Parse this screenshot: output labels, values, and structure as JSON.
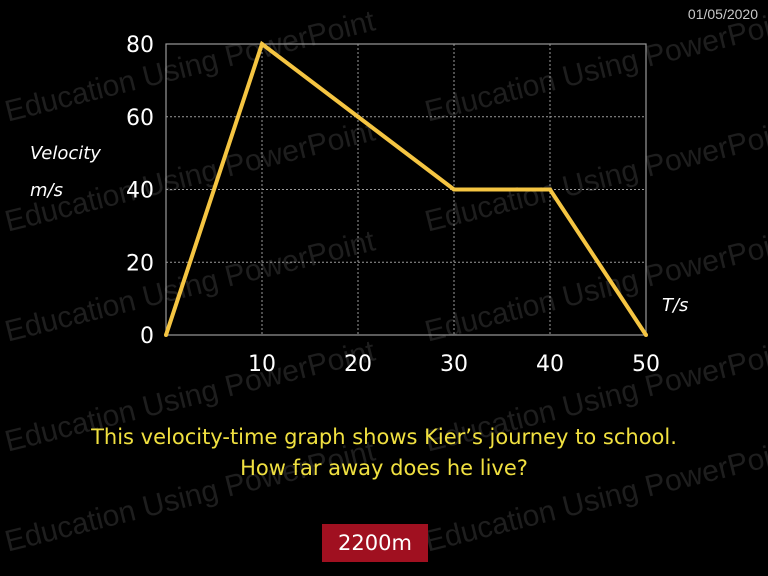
{
  "header": {
    "date": "01/05/2020"
  },
  "watermark": {
    "text": "Education Using PowerPoint"
  },
  "chart_data": {
    "type": "line",
    "x": [
      0,
      10,
      20,
      30,
      40,
      50
    ],
    "series": [
      {
        "values": [
          0,
          80,
          60,
          40,
          40,
          0
        ]
      }
    ],
    "xlabel": "T/s",
    "ylabel_lines": [
      "Velocity",
      "m/s"
    ],
    "x_ticks": [
      "10",
      "20",
      "30",
      "40",
      "50"
    ],
    "y_ticks": [
      "0",
      "20",
      "40",
      "60",
      "80"
    ],
    "xlim": [
      0,
      50
    ],
    "ylim": [
      0,
      80
    ],
    "grid": true,
    "line_color": "#f5c542",
    "grid_color": "#9a9a9a"
  },
  "question": {
    "line1": "This velocity-time graph shows Kier’s journey to school.",
    "line2": "How far away does he live?"
  },
  "answer": {
    "label": "2200m",
    "bg_color": "#a01020"
  }
}
